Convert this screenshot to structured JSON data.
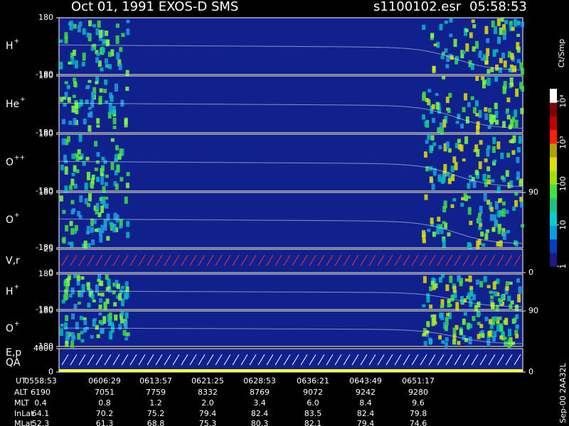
{
  "header": {
    "title": "Oct 01, 1991   EXOS-D SMS",
    "file": "s1100102.esr",
    "time": "05:58:53"
  },
  "side_label": "Sep-00 2AA32L",
  "colorbar": {
    "label": "Ct/Smp",
    "log": true,
    "lim": [
      1,
      20000
    ],
    "ticks": [
      1,
      10,
      100,
      {
        "value": 1000,
        "label": "10³"
      },
      {
        "value": 10000,
        "label": "10⁴"
      }
    ]
  },
  "chart_data": [
    {
      "type": "spectrogram",
      "ylabel": "H",
      "ylabel_sup": "+",
      "ylim": [
        -180,
        180
      ],
      "yticks": [
        -180,
        180
      ]
    },
    {
      "type": "spectrogram",
      "ylabel": "He",
      "ylabel_sup": "+",
      "ylim": [
        -180,
        180
      ],
      "yticks": [
        -180,
        180
      ]
    },
    {
      "type": "spectrogram",
      "ylabel": "O",
      "ylabel_sup": "++",
      "ylim": [
        -180,
        180
      ],
      "yticks": [
        -180,
        180
      ]
    },
    {
      "type": "spectrogram",
      "ylabel": "O",
      "ylabel_sup": "+",
      "ylim": [
        -180,
        180
      ],
      "yticks": [
        -180,
        180
      ],
      "y2lim": [
        0,
        90
      ],
      "y2ticks": [
        90
      ]
    },
    {
      "type": "vector",
      "ylabel": "V,r",
      "ylim": [
        0,
        25
      ],
      "yticks": [
        0,
        25
      ],
      "y2lim": [
        0,
        90
      ],
      "y2ticks": [
        0
      ]
    },
    {
      "type": "spectrogram",
      "ylabel": "H",
      "ylabel_sup": "+",
      "ylim": [
        -180,
        180
      ],
      "yticks": [
        -180,
        180
      ]
    },
    {
      "type": "spectrogram",
      "ylabel": "O",
      "ylabel_sup": "+",
      "ylim": [
        -180,
        180
      ],
      "yticks": [
        -180,
        180
      ],
      "y2lim": [
        0,
        90
      ],
      "y2ticks": [
        90
      ]
    },
    {
      "type": "vector",
      "ylabel": "E,p",
      "ylabel2": "QA",
      "ylim": [
        0,
        4000
      ],
      "yticks": [
        0,
        4000
      ],
      "y2lim": [
        0,
        90
      ],
      "y2ticks": [
        0
      ]
    }
  ],
  "table": {
    "rows": [
      {
        "label": "UT",
        "values": [
          "0558:53",
          "0606:29",
          "0613:57",
          "0621:25",
          "0628:53",
          "0636:21",
          "0643:49",
          "0651:17"
        ]
      },
      {
        "label": "ALT",
        "values": [
          "6190",
          "7051",
          "7759",
          "8332",
          "8769",
          "9072",
          "9242",
          "9280"
        ]
      },
      {
        "label": "MLT",
        "values": [
          "0.4",
          "0.8",
          "1.2",
          "2.0",
          "3.4",
          "6.0",
          "8.4",
          "9.6"
        ]
      },
      {
        "label": "InLat",
        "values": [
          "64.1",
          "70.2",
          "75.2",
          "79.4",
          "82.4",
          "83.5",
          "82.4",
          "79.8"
        ]
      },
      {
        "label": "MLat",
        "values": [
          "52.3",
          "61.3",
          "68.8",
          "75.3",
          "80.3",
          "82.1",
          "79.4",
          "74.6"
        ]
      }
    ]
  }
}
